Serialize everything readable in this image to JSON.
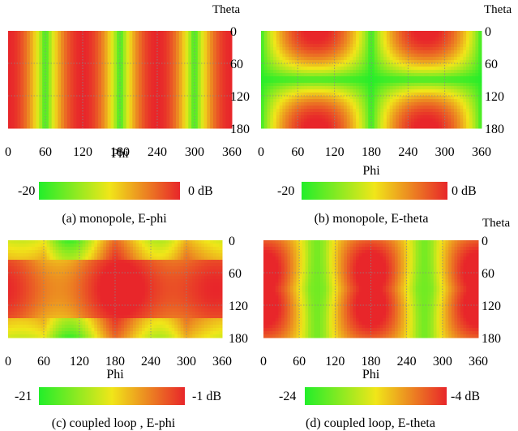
{
  "figure": {
    "unit_suffix": "dB",
    "colors": {
      "low": "#22ee2a",
      "mid": "#f0e619",
      "high": "#e8262a"
    },
    "panels": [
      {
        "caption": "(a) monopole, E-phi",
        "pattern": "monopole-ephi",
        "colorbar": {
          "min_label": "-20",
          "max_label": "0 dB"
        }
      },
      {
        "caption": "(b) monopole, E-theta",
        "pattern": "monopole-etheta",
        "colorbar": {
          "min_label": "-20",
          "max_label": "0 dB"
        }
      },
      {
        "caption": "(c) coupled loop , E-phi",
        "pattern": "loop-ephi",
        "colorbar": {
          "min_label": "-21",
          "max_label": "-1 dB"
        }
      },
      {
        "caption": "(d) coupled loop, E-theta",
        "pattern": "loop-etheta",
        "colorbar": {
          "min_label": "-24",
          "max_label": "-4 dB"
        }
      }
    ]
  },
  "chart_data": [
    {
      "type": "heatmap",
      "caption": "(a) monopole, E-phi",
      "xlabel": "Phi",
      "ylabel": "Theta",
      "xlim": [
        0,
        360
      ],
      "ylim": [
        180,
        0
      ],
      "xticks": [
        0,
        60,
        120,
        180,
        240,
        300,
        360
      ],
      "yticks": [
        0,
        60,
        120,
        180
      ],
      "colorbar": {
        "min": -20,
        "max": 0,
        "unit": "dB"
      },
      "grid": true,
      "description_of_field": "vertical stripes varying with phi only"
    },
    {
      "type": "heatmap",
      "caption": "(b) monopole, E-theta",
      "xlabel": "Phi",
      "ylabel": "Theta",
      "xlim": [
        0,
        360
      ],
      "ylim": [
        180,
        0
      ],
      "xticks": [
        0,
        60,
        120,
        180,
        240,
        300,
        360
      ],
      "yticks": [
        0,
        60,
        120,
        180
      ],
      "colorbar": {
        "min": -20,
        "max": 0,
        "unit": "dB"
      },
      "grid": true
    },
    {
      "type": "heatmap",
      "caption": "(c) coupled loop , E-phi",
      "xlabel": "Phi",
      "ylabel": "",
      "xlim": [
        0,
        360
      ],
      "ylim": [
        180,
        0
      ],
      "xticks": [
        0,
        60,
        120,
        180,
        240,
        300,
        360
      ],
      "yticks": [
        0,
        60,
        120,
        180
      ],
      "colorbar": {
        "min": -21,
        "max": -1,
        "unit": "dB"
      },
      "grid": true
    },
    {
      "type": "heatmap",
      "caption": "(d) coupled loop, E-theta",
      "xlabel": "Phi",
      "ylabel": "Theta",
      "xlim": [
        0,
        360
      ],
      "ylim": [
        180,
        0
      ],
      "xticks": [
        0,
        60,
        120,
        180,
        240,
        300,
        360
      ],
      "yticks": [
        0,
        60,
        120,
        180
      ],
      "colorbar": {
        "min": -24,
        "max": -4,
        "unit": "dB"
      },
      "grid": true
    }
  ]
}
